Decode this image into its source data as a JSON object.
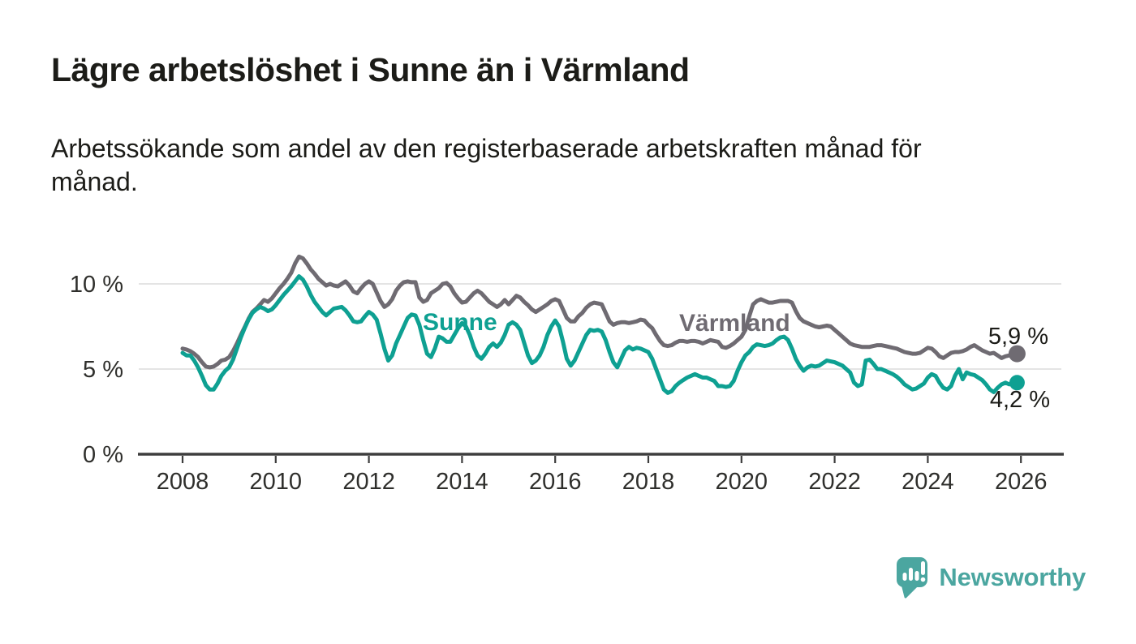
{
  "header": {
    "title": "Lägre arbetslöshet i Sunne än i Värmland",
    "subtitle": "Arbetssökande som andel av den registerbaserade arbetskraften månad för\nmånad."
  },
  "footer": {
    "brand": "Newsworthy"
  },
  "colors": {
    "sunne": "#0ea092",
    "varmland": "#6f6b72",
    "logo_teal": "#4ba6a0",
    "text": "#1c1c18",
    "axis": "#3d3d3d",
    "tick_label": "#2f2f2c",
    "gridline": "#e4e4e4"
  },
  "chart_data": {
    "type": "line",
    "title": "Lägre arbetslöshet i Sunne än i Värmland",
    "subtitle": "Arbetssökande som andel av den registerbaserade arbetskraften månad för månad.",
    "unit": "%",
    "x_interval": "monthly",
    "x_start_year": 2008,
    "x_end": "2025-12",
    "grid": "horizontal-only",
    "legend": "inline-labels",
    "x_axis": {
      "ticks": [
        2008,
        2010,
        2012,
        2014,
        2016,
        2018,
        2020,
        2022,
        2024,
        2026
      ]
    },
    "y_axis": {
      "range": [
        0,
        11.8
      ],
      "ticks": [
        {
          "value": 0,
          "label": "0 %"
        },
        {
          "value": 5,
          "label": "5 %"
        },
        {
          "value": 10,
          "label": "10 %"
        }
      ]
    },
    "series": [
      {
        "name": "Sunne",
        "color": "#0ea092",
        "end_label": "4,2 %",
        "end_value": 4.2,
        "values": [
          5.95,
          5.8,
          5.8,
          5.5,
          5.1,
          4.6,
          4.05,
          3.8,
          3.8,
          4.15,
          4.6,
          4.9,
          5.1,
          5.55,
          6.2,
          6.85,
          7.4,
          7.9,
          8.3,
          8.5,
          8.65,
          8.55,
          8.4,
          8.5,
          8.75,
          9.05,
          9.35,
          9.6,
          9.85,
          10.15,
          10.45,
          10.25,
          9.85,
          9.35,
          8.95,
          8.65,
          8.35,
          8.15,
          8.35,
          8.55,
          8.6,
          8.65,
          8.45,
          8.15,
          7.8,
          7.75,
          7.8,
          8.1,
          8.35,
          8.2,
          7.9,
          7.1,
          6.2,
          5.5,
          5.8,
          6.5,
          7.0,
          7.5,
          8.0,
          8.2,
          8.15,
          7.6,
          6.7,
          5.9,
          5.7,
          6.2,
          6.9,
          6.8,
          6.6,
          6.6,
          7.0,
          7.4,
          7.7,
          7.5,
          7.0,
          6.3,
          5.8,
          5.6,
          5.9,
          6.3,
          6.5,
          6.3,
          6.55,
          7.0,
          7.6,
          7.75,
          7.6,
          7.3,
          6.55,
          5.8,
          5.35,
          5.5,
          5.8,
          6.3,
          7.0,
          7.5,
          7.85,
          7.5,
          6.6,
          5.6,
          5.2,
          5.5,
          6.0,
          6.5,
          7.0,
          7.3,
          7.25,
          7.3,
          7.2,
          6.7,
          6.0,
          5.4,
          5.1,
          5.6,
          6.1,
          6.3,
          6.15,
          6.25,
          6.2,
          6.1,
          6.0,
          5.6,
          5.0,
          4.4,
          3.8,
          3.6,
          3.7,
          4.0,
          4.2,
          4.35,
          4.5,
          4.6,
          4.7,
          4.6,
          4.5,
          4.5,
          4.4,
          4.3,
          4.0,
          4.0,
          3.95,
          4.0,
          4.3,
          4.9,
          5.4,
          5.8,
          6.0,
          6.3,
          6.45,
          6.4,
          6.35,
          6.4,
          6.5,
          6.7,
          6.85,
          6.9,
          6.7,
          6.2,
          5.6,
          5.2,
          4.9,
          5.1,
          5.2,
          5.15,
          5.2,
          5.35,
          5.5,
          5.45,
          5.4,
          5.3,
          5.2,
          5.0,
          4.8,
          4.2,
          4.0,
          4.1,
          5.5,
          5.55,
          5.3,
          5.0,
          5.0,
          4.9,
          4.8,
          4.7,
          4.55,
          4.35,
          4.1,
          3.95,
          3.8,
          3.85,
          4.0,
          4.15,
          4.5,
          4.7,
          4.6,
          4.2,
          3.9,
          3.8,
          4.0,
          4.6,
          5.0,
          4.4,
          4.8,
          4.7,
          4.65,
          4.5,
          4.35,
          4.1,
          3.8,
          3.65,
          3.9,
          4.1,
          4.2,
          4.1,
          4.25,
          4.2
        ]
      },
      {
        "name": "Värmland",
        "color": "#6f6b72",
        "end_label": "5,9 %",
        "end_value": 5.9,
        "values": [
          6.2,
          6.15,
          6.05,
          5.9,
          5.7,
          5.4,
          5.15,
          5.1,
          5.15,
          5.3,
          5.5,
          5.55,
          5.7,
          6.05,
          6.5,
          7.0,
          7.45,
          7.95,
          8.35,
          8.55,
          8.8,
          9.05,
          8.95,
          9.15,
          9.45,
          9.75,
          10.0,
          10.3,
          10.65,
          11.2,
          11.6,
          11.5,
          11.2,
          10.85,
          10.6,
          10.3,
          10.1,
          9.9,
          10.0,
          9.9,
          9.85,
          10.0,
          10.15,
          9.9,
          9.55,
          9.45,
          9.75,
          10.0,
          10.15,
          10.0,
          9.5,
          9.0,
          8.65,
          8.8,
          9.1,
          9.6,
          9.9,
          10.1,
          10.15,
          10.1,
          10.1,
          9.2,
          8.95,
          9.05,
          9.45,
          9.6,
          9.75,
          10.0,
          10.05,
          9.85,
          9.45,
          9.15,
          8.9,
          8.95,
          9.2,
          9.45,
          9.6,
          9.45,
          9.2,
          8.95,
          8.8,
          8.65,
          8.8,
          9.05,
          8.8,
          9.05,
          9.3,
          9.2,
          8.95,
          8.75,
          8.5,
          8.35,
          8.5,
          8.65,
          8.8,
          9.0,
          9.1,
          9.0,
          8.5,
          8.0,
          7.8,
          7.8,
          8.1,
          8.3,
          8.6,
          8.8,
          8.9,
          8.85,
          8.8,
          8.3,
          7.8,
          7.6,
          7.7,
          7.75,
          7.75,
          7.7,
          7.75,
          7.8,
          7.9,
          7.85,
          7.6,
          7.4,
          7.0,
          6.65,
          6.4,
          6.35,
          6.4,
          6.55,
          6.65,
          6.65,
          6.6,
          6.65,
          6.65,
          6.6,
          6.5,
          6.6,
          6.7,
          6.65,
          6.6,
          6.3,
          6.25,
          6.35,
          6.5,
          6.7,
          6.9,
          7.3,
          8.1,
          8.8,
          9.0,
          9.1,
          9.0,
          8.9,
          8.9,
          8.95,
          9.0,
          9.0,
          9.0,
          8.9,
          8.4,
          8.0,
          7.8,
          7.7,
          7.6,
          7.5,
          7.45,
          7.5,
          7.55,
          7.5,
          7.3,
          7.1,
          6.9,
          6.7,
          6.5,
          6.4,
          6.35,
          6.3,
          6.3,
          6.3,
          6.35,
          6.4,
          6.4,
          6.35,
          6.3,
          6.25,
          6.2,
          6.1,
          6.0,
          5.95,
          5.9,
          5.9,
          5.95,
          6.1,
          6.25,
          6.2,
          6.0,
          5.75,
          5.65,
          5.8,
          5.95,
          6.0,
          6.0,
          6.05,
          6.15,
          6.3,
          6.4,
          6.25,
          6.1,
          6.0,
          5.9,
          5.95,
          5.8,
          5.65,
          5.75,
          5.8,
          5.85,
          5.9
        ]
      }
    ]
  }
}
